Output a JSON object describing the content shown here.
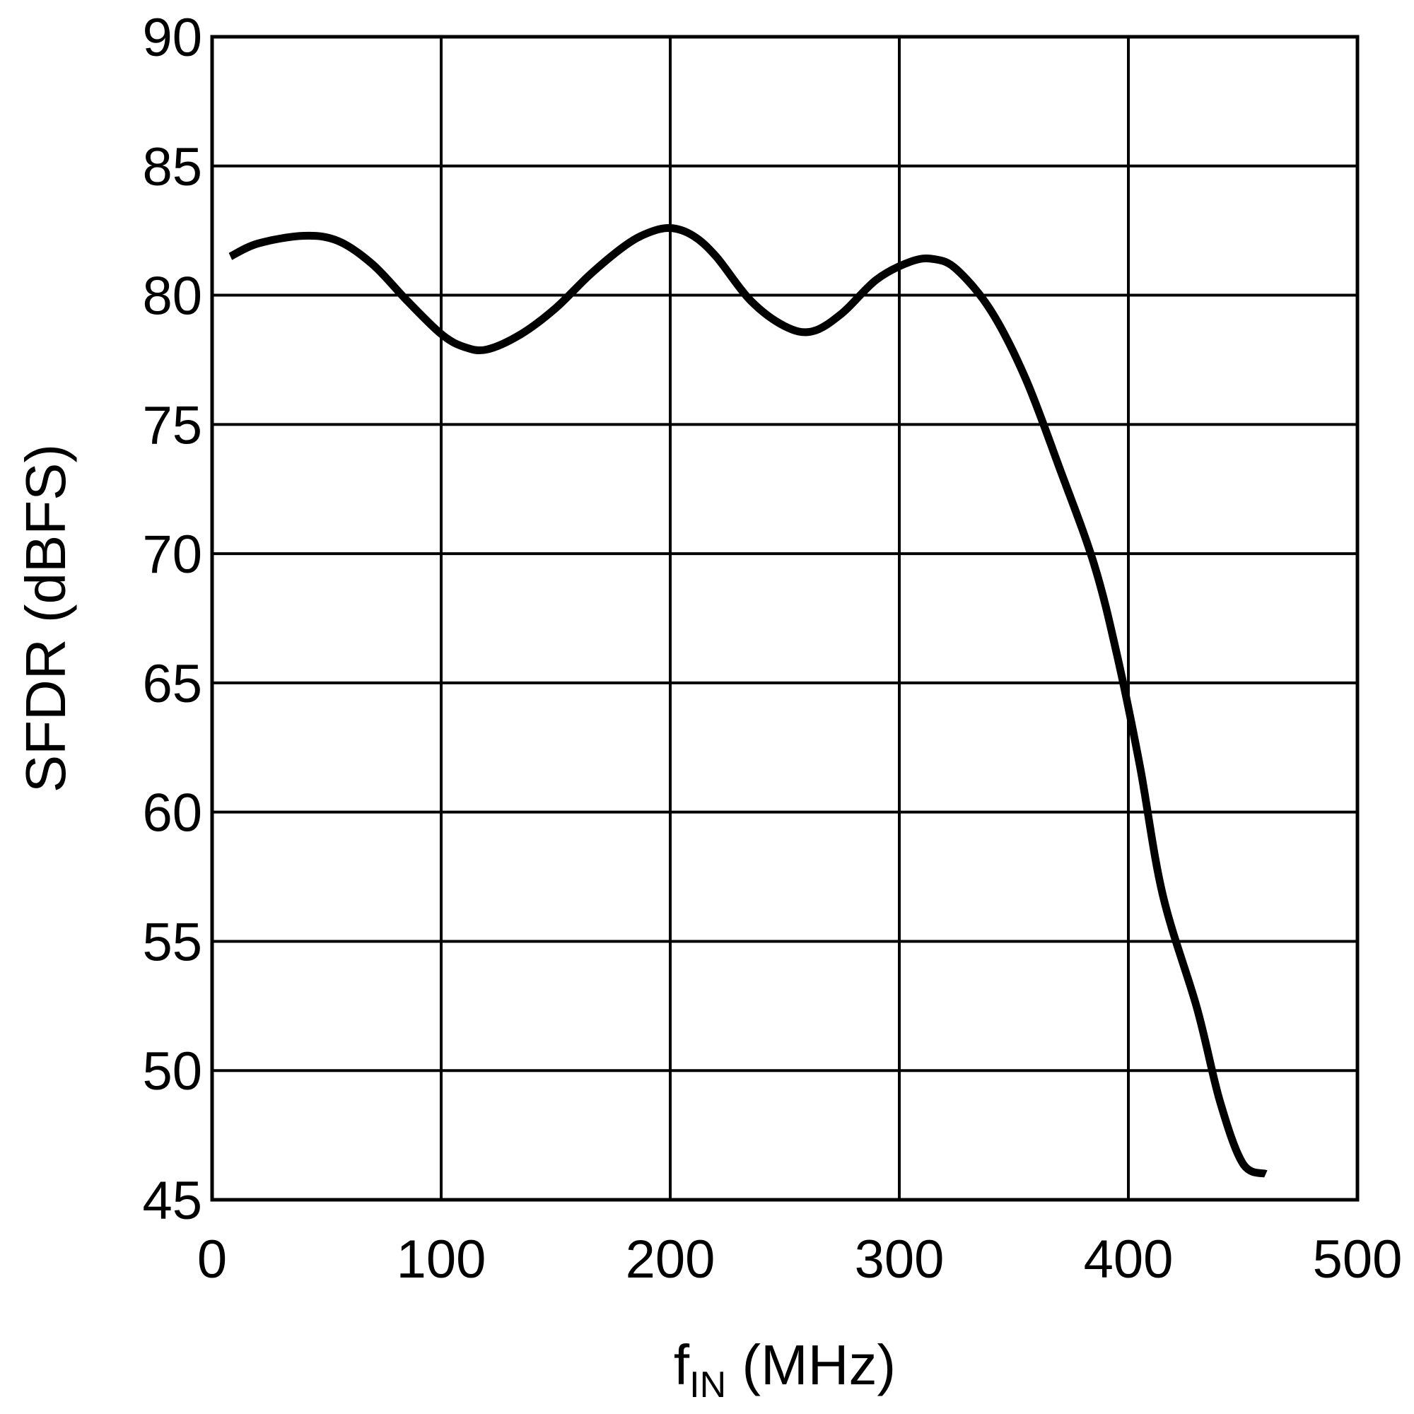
{
  "chart_data": {
    "type": "line",
    "title": "",
    "xlabel": {
      "main": "f",
      "subscript": "IN",
      "unit": " (MHz)"
    },
    "ylabel": "SFDR (dBFS)",
    "xlim": [
      0,
      500
    ],
    "ylim": [
      45,
      90
    ],
    "xticks": [
      0,
      100,
      200,
      300,
      400,
      500
    ],
    "yticks": [
      45,
      50,
      55,
      60,
      65,
      70,
      75,
      80,
      85,
      90
    ],
    "grid": true,
    "series": [
      {
        "name": "SFDR",
        "color": "#000000",
        "x": [
          8,
          20,
          40,
          55,
          70,
          85,
          100,
          110,
          120,
          135,
          150,
          165,
          180,
          190,
          200,
          210,
          220,
          235,
          250,
          262,
          275,
          290,
          305,
          315,
          325,
          340,
          355,
          370,
          385,
          395,
          405,
          415,
          430,
          440,
          450,
          460
        ],
        "y": [
          81.5,
          82.0,
          82.3,
          82.1,
          81.2,
          79.8,
          78.5,
          78.0,
          77.9,
          78.5,
          79.5,
          80.8,
          81.9,
          82.4,
          82.6,
          82.3,
          81.5,
          79.8,
          78.8,
          78.6,
          79.3,
          80.6,
          81.3,
          81.4,
          81.0,
          79.4,
          76.8,
          73.3,
          69.6,
          66.1,
          61.8,
          56.8,
          52.4,
          48.8,
          46.4,
          46.0
        ]
      }
    ]
  }
}
